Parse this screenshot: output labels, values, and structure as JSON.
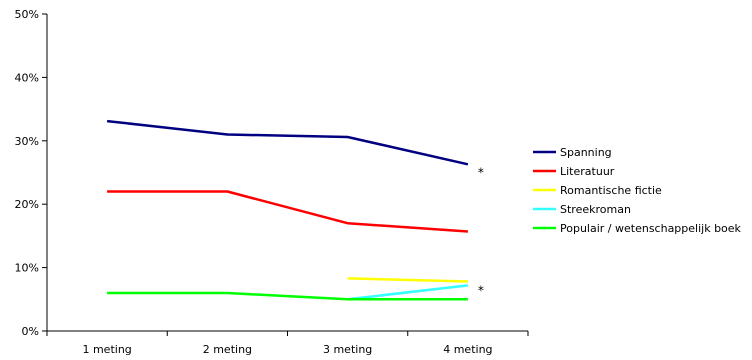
{
  "chart_data": {
    "type": "line",
    "categories": [
      "1 meting",
      "2 meting",
      "3 meting",
      "4 meting"
    ],
    "ylim": [
      0,
      50
    ],
    "yticks": [
      0,
      10,
      20,
      30,
      40,
      50
    ],
    "ytick_labels": [
      "0%",
      "10%",
      "20%",
      "30%",
      "40%",
      "50%"
    ],
    "grid": false,
    "legend_position": "right",
    "series": [
      {
        "name": "Spanning",
        "color": "#000080",
        "values": [
          33.1,
          31.0,
          30.6,
          26.3
        ]
      },
      {
        "name": "Literatuur",
        "color": "#ff0000",
        "values": [
          22.0,
          22.0,
          17.0,
          15.7
        ]
      },
      {
        "name": "Romantische fictie",
        "color": "#ffff00",
        "values": [
          null,
          null,
          8.3,
          7.8
        ]
      },
      {
        "name": "Streekroman",
        "color": "#33ffff",
        "values": [
          null,
          null,
          5.0,
          7.2
        ]
      },
      {
        "name": "Populair / wetenschappelijk boek",
        "color": "#00ff00",
        "values": [
          6.0,
          6.0,
          5.0,
          5.0
        ]
      }
    ],
    "annotations": [
      {
        "text": "*",
        "category_index": 3,
        "y": 25.0
      },
      {
        "text": "*",
        "category_index": 3,
        "y": 6.4
      }
    ]
  }
}
